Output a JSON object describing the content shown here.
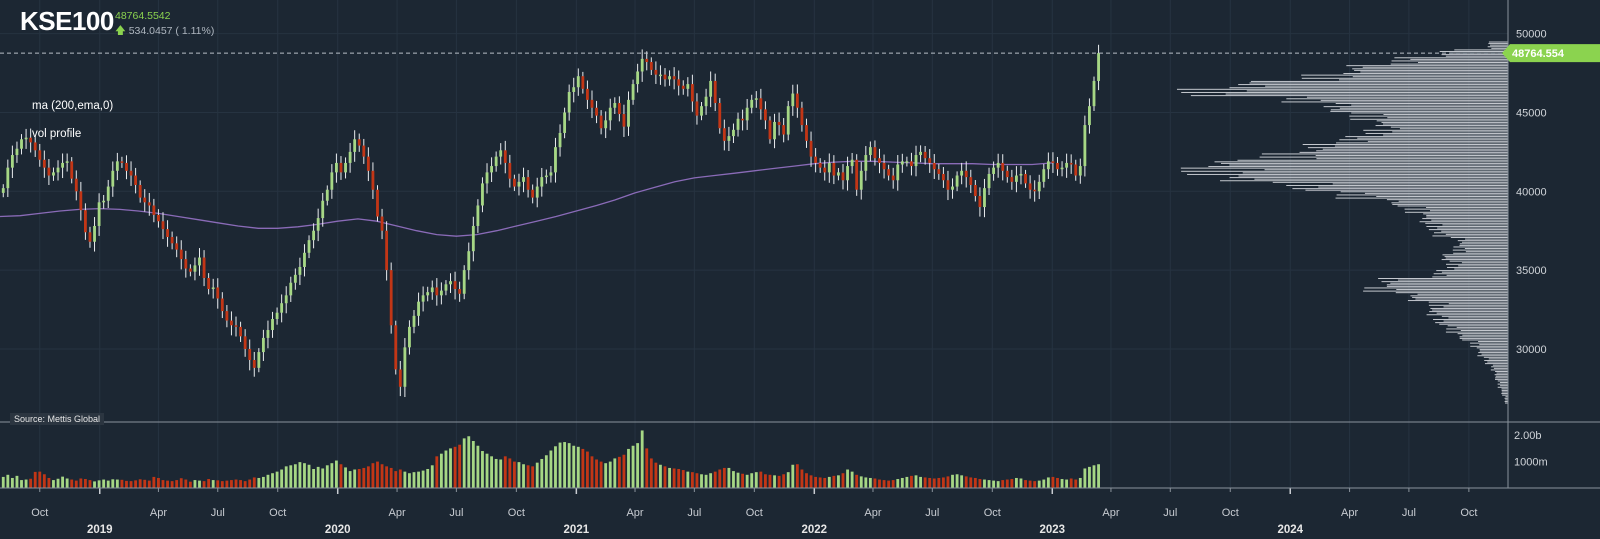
{
  "header": {
    "symbol": "KSE100",
    "last_price": "48764.5542",
    "change": "534.0457 ( 1.11%)"
  },
  "studies": [
    "ma (200,ema,0)",
    "vol profile"
  ],
  "source": "Source: Mettis Global",
  "colors": {
    "background": "#1c2733",
    "up": "#a6d785",
    "down": "#c23616",
    "ma": "#8a6bb8",
    "profile": "#c8ccd2",
    "price_tag": "#8bd34f",
    "grid": "#263341"
  },
  "chart_data": {
    "type": "candlestick",
    "title": "KSE100",
    "x_range": [
      "2018-08-01",
      "2024-11-30"
    ],
    "price_axis": {
      "ylim": [
        26000,
        51500
      ],
      "ticks": [
        "50000",
        "45000",
        "40000",
        "35000",
        "30000"
      ]
    },
    "volume_axis": {
      "ylim": [
        0,
        2500
      ],
      "unit": "m",
      "ticks": [
        "2.00b",
        "1000m"
      ]
    },
    "last_price_tag": "48764.554",
    "x_month_ticks": [
      {
        "date": "2018-10-01",
        "label": "Oct"
      },
      {
        "date": "2019-04-01",
        "label": "Apr"
      },
      {
        "date": "2019-07-01",
        "label": "Jul"
      },
      {
        "date": "2019-10-01",
        "label": "Oct"
      },
      {
        "date": "2020-04-01",
        "label": "Apr"
      },
      {
        "date": "2020-07-01",
        "label": "Jul"
      },
      {
        "date": "2020-10-01",
        "label": "Oct"
      },
      {
        "date": "2021-04-01",
        "label": "Apr"
      },
      {
        "date": "2021-07-01",
        "label": "Jul"
      },
      {
        "date": "2021-10-01",
        "label": "Oct"
      },
      {
        "date": "2022-04-01",
        "label": "Apr"
      },
      {
        "date": "2022-07-01",
        "label": "Jul"
      },
      {
        "date": "2022-10-01",
        "label": "Oct"
      },
      {
        "date": "2023-04-01",
        "label": "Apr"
      },
      {
        "date": "2023-07-01",
        "label": "Jul"
      },
      {
        "date": "2023-10-01",
        "label": "Oct"
      },
      {
        "date": "2024-04-01",
        "label": "Apr"
      },
      {
        "date": "2024-07-01",
        "label": "Jul"
      },
      {
        "date": "2024-10-01",
        "label": "Oct"
      }
    ],
    "x_year_ticks": [
      {
        "date": "2019-01-01",
        "label": "2019"
      },
      {
        "date": "2020-01-01",
        "label": "2020"
      },
      {
        "date": "2021-01-01",
        "label": "2021"
      },
      {
        "date": "2022-01-01",
        "label": "2022"
      },
      {
        "date": "2023-01-01",
        "label": "2023"
      },
      {
        "date": "2024-01-01",
        "label": "2024"
      }
    ],
    "closes": {
      "start_date": "2018-08-06",
      "interval": "weekly",
      "values": [
        40200,
        41500,
        42300,
        42700,
        43300,
        43400,
        43100,
        42600,
        42000,
        41500,
        41000,
        41200,
        41500,
        41800,
        41900,
        40800,
        40000,
        38800,
        37400,
        36800,
        37800,
        39300,
        39400,
        40300,
        41300,
        41900,
        41800,
        41300,
        41000,
        40400,
        39600,
        39300,
        39100,
        38500,
        38100,
        37600,
        37100,
        36700,
        36300,
        35700,
        35100,
        34900,
        35300,
        35800,
        34500,
        33800,
        33900,
        33200,
        32400,
        31800,
        31500,
        31400,
        30800,
        30000,
        29300,
        28800,
        29800,
        30700,
        31200,
        31900,
        32300,
        32900,
        33400,
        34200,
        34700,
        35200,
        36100,
        36900,
        37500,
        38300,
        39400,
        40100,
        41200,
        41800,
        41200,
        41800,
        42500,
        43300,
        42900,
        42200,
        41300,
        40100,
        38400,
        37500,
        35000,
        31500,
        28700,
        27600,
        30100,
        31400,
        32100,
        33000,
        33400,
        33600,
        33900,
        33400,
        33700,
        34100,
        34300,
        33800,
        33500,
        35000,
        36200,
        37800,
        39100,
        40500,
        41200,
        41600,
        42200,
        42600,
        41800,
        40800,
        40300,
        40600,
        40900,
        40100,
        39600,
        40300,
        40900,
        41000,
        41200,
        42800,
        43700,
        45000,
        46300,
        46600,
        47300,
        46500,
        45800,
        45300,
        44800,
        44000,
        44500,
        45300,
        45600,
        44900,
        44100,
        45800,
        46800,
        47600,
        48400,
        48200,
        47700,
        47400,
        47400,
        47100,
        47300,
        47100,
        46700,
        46500,
        46800,
        45700,
        44800,
        45400,
        46000,
        47000,
        45600,
        44000,
        43200,
        43500,
        43900,
        44600,
        44500,
        45300,
        45800,
        45900,
        45200,
        44500,
        43300,
        44400,
        44200,
        43600,
        45400,
        46200,
        45300,
        44200,
        43200,
        42200,
        41800,
        41500,
        41200,
        41800,
        41000,
        41200,
        40700,
        41600,
        42000,
        40100,
        41300,
        42300,
        42800,
        42100,
        41800,
        41400,
        41000,
        40700,
        41700,
        41900,
        41900,
        41600,
        42300,
        42500,
        42100,
        41800,
        41400,
        41100,
        40700,
        40100,
        40300,
        41000,
        41300,
        40900,
        40400,
        39700,
        39000,
        40200,
        41100,
        41500,
        41800,
        41300,
        40900,
        40600,
        41000,
        41100,
        40500,
        40100,
        40000,
        40600,
        41400,
        41900,
        41800,
        41400,
        41500,
        41800,
        41700,
        41000,
        41600,
        44200,
        45400,
        47000,
        48765
      ]
    },
    "ma_200_ema": {
      "start_date": "2018-08-01",
      "interval": "monthly",
      "values": [
        38400,
        38450,
        38600,
        38750,
        38850,
        38900,
        38850,
        38750,
        38600,
        38400,
        38200,
        38000,
        37800,
        37650,
        37650,
        37750,
        37900,
        38100,
        38250,
        38100,
        37800,
        37500,
        37250,
        37150,
        37250,
        37500,
        37800,
        38100,
        38400,
        38750,
        39100,
        39450,
        39900,
        40250,
        40600,
        40850,
        41000,
        41150,
        41300,
        41450,
        41600,
        41750,
        41850,
        41900,
        41900,
        41850,
        41800,
        41750,
        41750,
        41750,
        41700,
        41700,
        41700,
        41800
      ]
    },
    "volume": {
      "start_date": "2018-08-06",
      "interval": "weekly",
      "unit": "m",
      "values": [
        420,
        500,
        380,
        460,
        300,
        320,
        350,
        610,
        620,
        520,
        380,
        300,
        350,
        430,
        360,
        320,
        280,
        360,
        340,
        300,
        250,
        290,
        320,
        280,
        330,
        320,
        310,
        270,
        260,
        290,
        330,
        310,
        280,
        420,
        380,
        300,
        280,
        260,
        300,
        370,
        320,
        240,
        300,
        280,
        260,
        340,
        300,
        290,
        260,
        280,
        300,
        320,
        300,
        260,
        320,
        400,
        380,
        420,
        500,
        560,
        620,
        700,
        820,
        860,
        900,
        980,
        940,
        880,
        720,
        800,
        740,
        860,
        940,
        1040,
        900,
        780,
        640,
        700,
        720,
        760,
        820,
        940,
        1000,
        900,
        820,
        760,
        640,
        700,
        620,
        560,
        600,
        620,
        660,
        720,
        860,
        1200,
        1300,
        1420,
        1500,
        1560,
        1640,
        1880,
        1960,
        1780,
        1600,
        1400,
        1300,
        1200,
        1100,
        1080,
        1200,
        1120,
        1000,
        980,
        900,
        860,
        820,
        960,
        1100,
        1240,
        1420,
        1580,
        1720,
        1740,
        1700,
        1600,
        1560,
        1480,
        1380,
        1200,
        1080,
        1000,
        940,
        1000,
        1120,
        1180,
        1260,
        1480,
        1600,
        1700,
        2180,
        1500,
        1120,
        960,
        880,
        820,
        760,
        740,
        720,
        680,
        620,
        600,
        560,
        520,
        500,
        560,
        620,
        700,
        760,
        760,
        640,
        580,
        540,
        500,
        560,
        600,
        620,
        520,
        500,
        480,
        460,
        520,
        600,
        880,
        900,
        700,
        560,
        480,
        420,
        400,
        380,
        420,
        460,
        480,
        560,
        700,
        620,
        500,
        440,
        400,
        380,
        360,
        320,
        300,
        280,
        300,
        340,
        380,
        420,
        460,
        480,
        420,
        400,
        380,
        360,
        380,
        400,
        440,
        500,
        520,
        480,
        440,
        400,
        380,
        340,
        320,
        300,
        280,
        260,
        300,
        320,
        340,
        380,
        360,
        300,
        280,
        260,
        280,
        320,
        400,
        420,
        380,
        340,
        320,
        360,
        320,
        380,
        740,
        800,
        860,
        900
      ]
    },
    "volume_profile": {
      "price_buckets": [
        26500,
        27000,
        27500,
        28000,
        28500,
        29000,
        29500,
        30000,
        30500,
        31000,
        31500,
        32000,
        32500,
        33000,
        33500,
        34000,
        34500,
        35000,
        35500,
        36000,
        36500,
        37000,
        37500,
        38000,
        38500,
        39000,
        39500,
        40000,
        40500,
        41000,
        41500,
        42000,
        42500,
        43000,
        43500,
        44000,
        44500,
        45000,
        45500,
        46000,
        46500,
        47000,
        47500,
        48000,
        48500,
        49000
      ],
      "relative_volume": [
        0.01,
        0.02,
        0.03,
        0.04,
        0.05,
        0.07,
        0.09,
        0.11,
        0.15,
        0.18,
        0.22,
        0.24,
        0.23,
        0.3,
        0.42,
        0.38,
        0.22,
        0.18,
        0.2,
        0.16,
        0.15,
        0.22,
        0.24,
        0.26,
        0.3,
        0.36,
        0.5,
        0.65,
        0.85,
        0.95,
        0.9,
        0.72,
        0.6,
        0.5,
        0.42,
        0.4,
        0.46,
        0.55,
        0.66,
        0.96,
        0.82,
        0.6,
        0.48,
        0.34,
        0.2,
        0.06
      ]
    }
  }
}
